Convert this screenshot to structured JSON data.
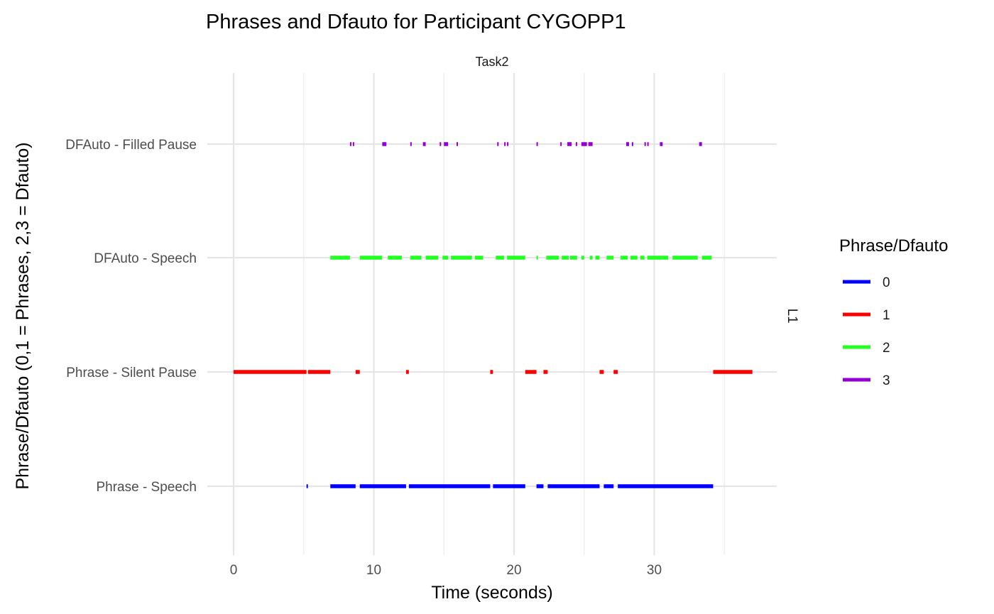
{
  "chart_data": {
    "type": "segment",
    "title": "Phrases and Dfauto for Participant CYGOPP1",
    "facet_label": "Task2",
    "side_label": "L1",
    "xlabel": "Time (seconds)",
    "ylabel": "Phrase/Dfauto (0,1 = Phrases, 2,3 = Dfauto)",
    "xlim": [
      -1.5,
      38.9
    ],
    "x_ticks": [
      0,
      10,
      20,
      30
    ],
    "x_tick_labels": [
      "0",
      "10",
      "20",
      "30"
    ],
    "y_categories": [
      "Phrase - Speech",
      "Phrase - Silent Pause",
      "DFAuto - Speech",
      "DFAuto - Filled Pause"
    ],
    "legend": {
      "title": "Phrase/Dfauto",
      "entries": [
        {
          "label": "0",
          "color": "#0000FF"
        },
        {
          "label": "1",
          "color": "#FF0000"
        },
        {
          "label": "2",
          "color": "#22FF22"
        },
        {
          "label": "3",
          "color": "#9400D3"
        }
      ]
    },
    "series": [
      {
        "name": "0",
        "category": "Phrase - Speech",
        "color": "#0000FF",
        "intervals": [
          [
            5.2,
            5.3
          ],
          [
            6.9,
            8.7
          ],
          [
            9.0,
            12.3
          ],
          [
            12.5,
            18.3
          ],
          [
            18.5,
            20.8
          ],
          [
            21.6,
            22.1
          ],
          [
            22.4,
            26.1
          ],
          [
            26.4,
            27.1
          ],
          [
            27.4,
            34.2
          ]
        ]
      },
      {
        "name": "1",
        "category": "Phrase - Silent Pause",
        "color": "#FF0000",
        "intervals": [
          [
            0.0,
            5.2
          ],
          [
            5.3,
            6.9
          ],
          [
            8.7,
            9.0
          ],
          [
            12.3,
            12.5
          ],
          [
            18.3,
            18.5
          ],
          [
            20.8,
            21.6
          ],
          [
            22.1,
            22.4
          ],
          [
            26.1,
            26.4
          ],
          [
            27.1,
            27.4
          ],
          [
            34.2,
            37.0
          ]
        ]
      },
      {
        "name": "2",
        "category": "DFAuto - Speech",
        "color": "#22FF22",
        "intervals": [
          [
            6.9,
            8.3
          ],
          [
            9.0,
            10.6
          ],
          [
            11.0,
            12.0
          ],
          [
            12.6,
            13.4
          ],
          [
            13.7,
            14.6
          ],
          [
            14.9,
            15.3
          ],
          [
            15.5,
            17.0
          ],
          [
            17.2,
            17.8
          ],
          [
            18.7,
            19.3
          ],
          [
            19.5,
            20.8
          ],
          [
            21.6,
            21.7
          ],
          [
            22.3,
            23.2
          ],
          [
            23.4,
            23.9
          ],
          [
            24.0,
            24.5
          ],
          [
            24.8,
            25.0
          ],
          [
            25.4,
            25.6
          ],
          [
            25.8,
            26.1
          ],
          [
            26.6,
            27.1
          ],
          [
            27.6,
            28.1
          ],
          [
            28.3,
            28.8
          ],
          [
            29.0,
            29.3
          ],
          [
            29.5,
            31.0
          ],
          [
            31.3,
            33.1
          ],
          [
            33.4,
            34.1
          ]
        ]
      },
      {
        "name": "3",
        "category": "DFAuto - Filled Pause",
        "color": "#9400D3",
        "intervals": [
          [
            8.3,
            8.4
          ],
          [
            8.5,
            8.6
          ],
          [
            10.6,
            10.9
          ],
          [
            12.6,
            12.7
          ],
          [
            13.5,
            13.7
          ],
          [
            14.7,
            14.8
          ],
          [
            15.0,
            15.3
          ],
          [
            15.9,
            16.0
          ],
          [
            18.8,
            18.9
          ],
          [
            19.3,
            19.4
          ],
          [
            19.5,
            19.6
          ],
          [
            21.6,
            21.7
          ],
          [
            23.3,
            23.4
          ],
          [
            23.8,
            24.1
          ],
          [
            24.4,
            24.5
          ],
          [
            24.8,
            25.2
          ],
          [
            25.3,
            25.6
          ],
          [
            28.0,
            28.2
          ],
          [
            28.4,
            28.5
          ],
          [
            29.3,
            29.4
          ],
          [
            29.5,
            29.6
          ],
          [
            30.4,
            30.6
          ],
          [
            33.2,
            33.4
          ]
        ]
      }
    ]
  }
}
